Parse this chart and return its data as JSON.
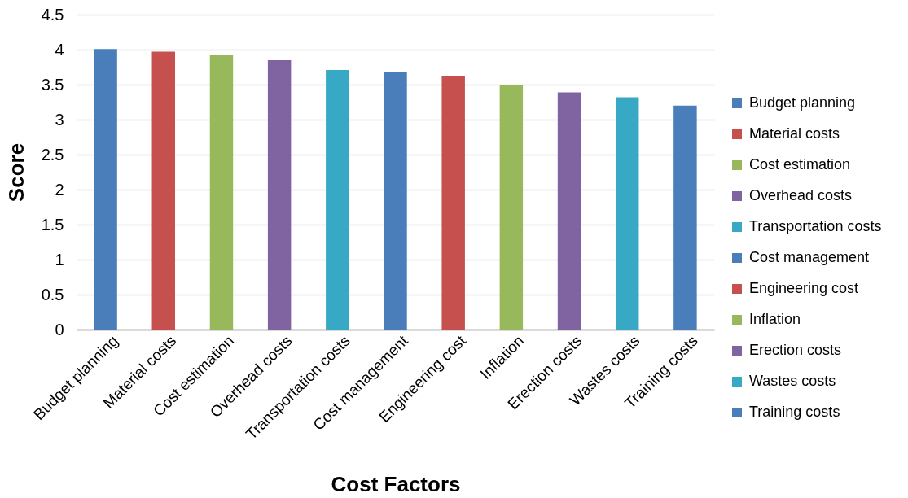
{
  "chart_data": {
    "type": "bar",
    "stacked": true,
    "xlabel": "Cost Factors",
    "ylabel": "Score",
    "categories": [
      "Budget planning",
      "Material costs",
      "Cost estimation",
      "Overhead costs",
      "Transportation costs",
      "Cost management",
      "Engineering cost",
      "Inflation",
      "Erection costs",
      "Wastes costs",
      "Training costs"
    ],
    "series": [
      {
        "name": "Budget planning",
        "color": "#4a7ebb",
        "values": [
          4.01,
          null,
          null,
          null,
          null,
          null,
          null,
          null,
          null,
          null,
          null
        ]
      },
      {
        "name": "Material costs",
        "color": "#c6504e",
        "values": [
          null,
          3.97,
          null,
          null,
          null,
          null,
          null,
          null,
          null,
          null,
          null
        ]
      },
      {
        "name": "Cost estimation",
        "color": "#98b95b",
        "values": [
          null,
          null,
          3.92,
          null,
          null,
          null,
          null,
          null,
          null,
          null,
          null
        ]
      },
      {
        "name": "Overhead costs",
        "color": "#8064a2",
        "values": [
          null,
          null,
          null,
          3.85,
          null,
          null,
          null,
          null,
          null,
          null,
          null
        ]
      },
      {
        "name": "Transportation costs",
        "color": "#38a9c4",
        "values": [
          null,
          null,
          null,
          null,
          3.71,
          null,
          null,
          null,
          null,
          null,
          null
        ]
      },
      {
        "name": "Cost management",
        "color": "#4a7ebb",
        "values": [
          null,
          null,
          null,
          null,
          null,
          3.68,
          null,
          null,
          null,
          null,
          null
        ]
      },
      {
        "name": "Engineering cost",
        "color": "#c6504e",
        "values": [
          null,
          null,
          null,
          null,
          null,
          null,
          3.62,
          null,
          null,
          null,
          null
        ]
      },
      {
        "name": "Inflation",
        "color": "#98b95b",
        "values": [
          null,
          null,
          null,
          null,
          null,
          null,
          null,
          3.5,
          null,
          null,
          null
        ]
      },
      {
        "name": "Erection costs",
        "color": "#8064a2",
        "values": [
          null,
          null,
          null,
          null,
          null,
          null,
          null,
          null,
          3.39,
          null,
          null
        ]
      },
      {
        "name": "Wastes costs",
        "color": "#38a9c4",
        "values": [
          null,
          null,
          null,
          null,
          null,
          null,
          null,
          null,
          null,
          3.32,
          null
        ]
      },
      {
        "name": "Training costs",
        "color": "#4a7ebb",
        "values": [
          null,
          null,
          null,
          null,
          null,
          null,
          null,
          null,
          null,
          null,
          3.2
        ]
      }
    ],
    "ylim": [
      0,
      4.5
    ],
    "yticks": [
      0,
      0.5,
      1,
      1.5,
      2,
      2.5,
      3,
      3.5,
      4,
      4.5
    ],
    "grid": "y",
    "legend": "right"
  }
}
